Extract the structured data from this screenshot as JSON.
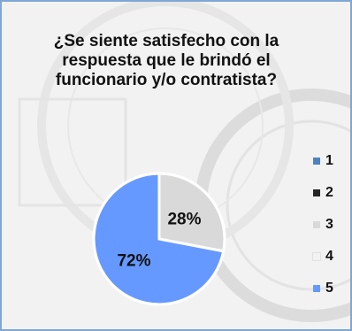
{
  "chart_data": {
    "type": "pie",
    "title": "¿Se siente satisfecho con la respuesta que le brindó el funcionario y/o contratista?",
    "categories": [
      "1",
      "2",
      "3",
      "4",
      "5"
    ],
    "values": [
      0,
      0,
      28,
      0,
      72
    ],
    "slice_labels": [
      "",
      "",
      "28%",
      "",
      "72%"
    ],
    "colors": [
      "#4f81bd",
      "#262626",
      "#d9d9d9",
      "#f2f2f2",
      "#6699ff"
    ],
    "legend_position": "right"
  }
}
